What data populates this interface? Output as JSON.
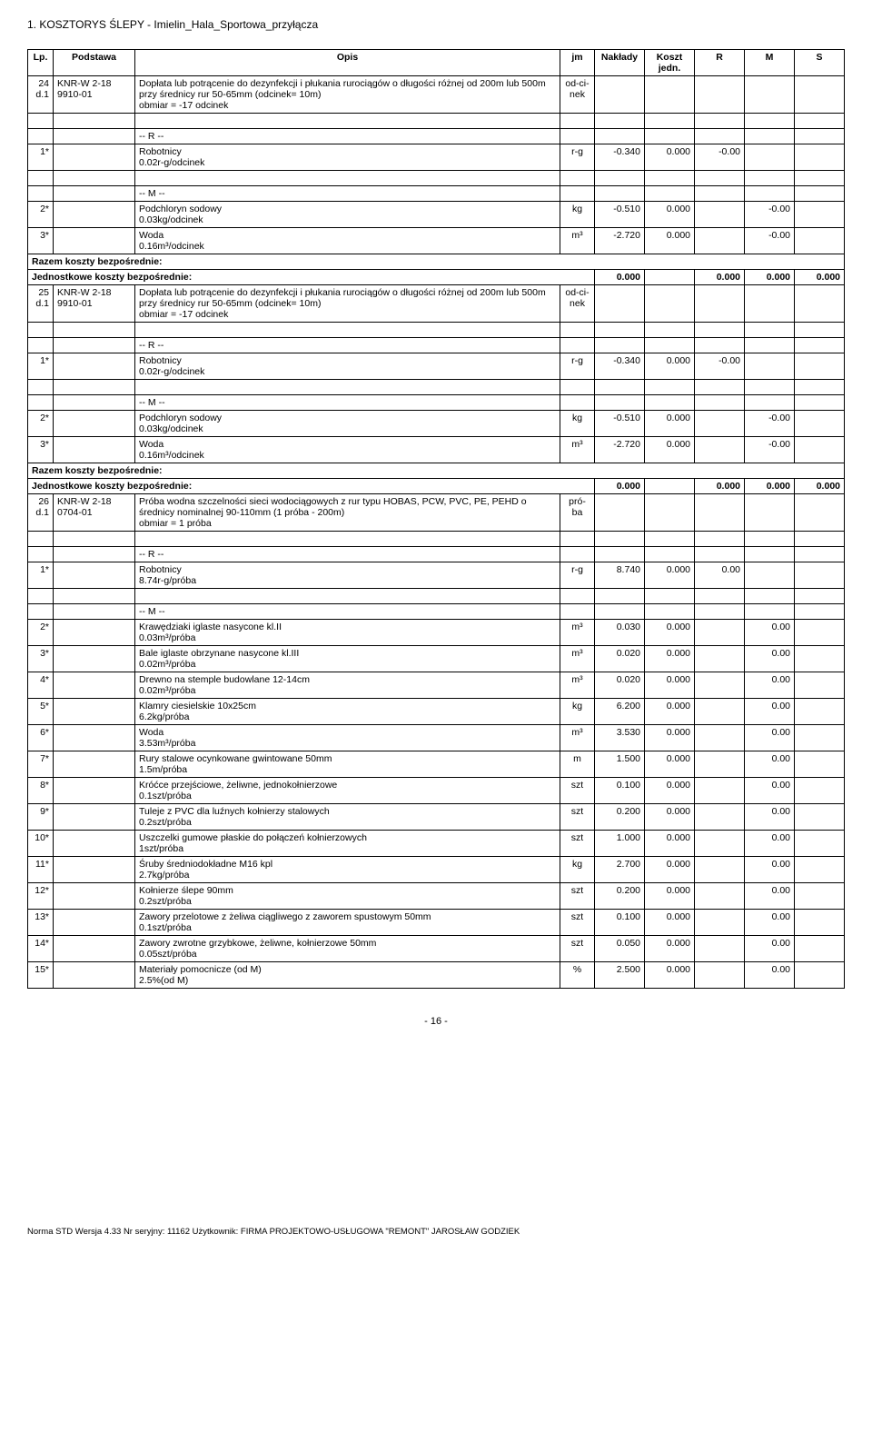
{
  "doc_title": "1. KOSZTORYS ŚLEPY  - Imielin_Hala_Sportowa_przyłącza",
  "headers": {
    "lp": "Lp.",
    "podstawa": "Podstawa",
    "opis": "Opis",
    "jm": "jm",
    "naklady": "Nakłady",
    "koszt": "Koszt jedn.",
    "r": "R",
    "m": "M",
    "s": "S"
  },
  "sections": [
    {
      "lp": "24",
      "pod_a": "KNR-W 2-18",
      "pod_b": "d.1 9910-01",
      "opis": "Dopłata lub potrącenie do dezynfekcji i płukania rurociągów o długości różnej od 200m lub 500m przy średnicy rur 50-65mm (odcinek= 10m)",
      "obmiar": "obmiar  = -17 odcinek",
      "jm": "od-ci-nek",
      "groups": [
        {
          "label": "-- R --",
          "rows": [
            {
              "n": "1*",
              "opis": "Robotnicy",
              "sub": "0.02r-g/odcinek",
              "jm": "r-g",
              "nak": "-0.340",
              "kj": "0.000",
              "r": "-0.00",
              "m": "",
              "s": ""
            }
          ]
        },
        {
          "label": "-- M --",
          "rows": [
            {
              "n": "2*",
              "opis": "Podchloryn sodowy",
              "sub": "0.03kg/odcinek",
              "jm": "kg",
              "nak": "-0.510",
              "kj": "0.000",
              "r": "",
              "m": "-0.00",
              "s": ""
            },
            {
              "n": "3*",
              "opis": "Woda",
              "sub": "0.16m³/odcinek",
              "jm": "m³",
              "nak": "-2.720",
              "kj": "0.000",
              "r": "",
              "m": "-0.00",
              "s": ""
            }
          ]
        }
      ],
      "sum": {
        "a": "Razem koszty bezpośrednie:",
        "b": "Jednostkowe koszty bezpośrednie:",
        "v0": "0.000",
        "r": "0.000",
        "m": "0.000",
        "s": "0.000"
      }
    },
    {
      "lp": "25",
      "pod_a": "KNR-W 2-18",
      "pod_b": "d.1 9910-01",
      "opis": "Dopłata lub potrącenie do dezynfekcji i płukania rurociągów o długości różnej od 200m lub 500m przy średnicy rur 50-65mm (odcinek= 10m)",
      "obmiar": "obmiar  = -17 odcinek",
      "jm": "od-ci-nek",
      "groups": [
        {
          "label": "-- R --",
          "rows": [
            {
              "n": "1*",
              "opis": "Robotnicy",
              "sub": "0.02r-g/odcinek",
              "jm": "r-g",
              "nak": "-0.340",
              "kj": "0.000",
              "r": "-0.00",
              "m": "",
              "s": ""
            }
          ]
        },
        {
          "label": "-- M --",
          "rows": [
            {
              "n": "2*",
              "opis": "Podchloryn sodowy",
              "sub": "0.03kg/odcinek",
              "jm": "kg",
              "nak": "-0.510",
              "kj": "0.000",
              "r": "",
              "m": "-0.00",
              "s": ""
            },
            {
              "n": "3*",
              "opis": "Woda",
              "sub": "0.16m³/odcinek",
              "jm": "m³",
              "nak": "-2.720",
              "kj": "0.000",
              "r": "",
              "m": "-0.00",
              "s": ""
            }
          ]
        }
      ],
      "sum": {
        "a": "Razem koszty bezpośrednie:",
        "b": "Jednostkowe koszty bezpośrednie:",
        "v0": "0.000",
        "r": "0.000",
        "m": "0.000",
        "s": "0.000"
      }
    },
    {
      "lp": "26",
      "pod_a": "KNR-W 2-18",
      "pod_b": "d.1 0704-01",
      "opis": "Próba wodna szczelności sieci wodociągowych z rur typu HOBAS, PCW, PVC, PE, PEHD o średnicy nominalnej 90-110mm (1 próba - 200m)",
      "obmiar": "obmiar  = 1 próba",
      "jm": "pró-ba",
      "groups": [
        {
          "label": "-- R --",
          "rows": [
            {
              "n": "1*",
              "opis": "Robotnicy",
              "sub": "8.74r-g/próba",
              "jm": "r-g",
              "nak": "8.740",
              "kj": "0.000",
              "r": "0.00",
              "m": "",
              "s": ""
            }
          ]
        },
        {
          "label": "-- M --",
          "rows": [
            {
              "n": "2*",
              "opis": "Krawędziaki iglaste nasycone kl.II",
              "sub": "0.03m³/próba",
              "jm": "m³",
              "nak": "0.030",
              "kj": "0.000",
              "r": "",
              "m": "0.00",
              "s": ""
            },
            {
              "n": "3*",
              "opis": "Bale iglaste obrzynane nasycone kl.III",
              "sub": "0.02m³/próba",
              "jm": "m³",
              "nak": "0.020",
              "kj": "0.000",
              "r": "",
              "m": "0.00",
              "s": ""
            },
            {
              "n": "4*",
              "opis": "Drewno na stemple budowlane 12-14cm",
              "sub": "0.02m³/próba",
              "jm": "m³",
              "nak": "0.020",
              "kj": "0.000",
              "r": "",
              "m": "0.00",
              "s": ""
            },
            {
              "n": "5*",
              "opis": "Klamry ciesielskie 10x25cm",
              "sub": "6.2kg/próba",
              "jm": "kg",
              "nak": "6.200",
              "kj": "0.000",
              "r": "",
              "m": "0.00",
              "s": ""
            },
            {
              "n": "6*",
              "opis": "Woda",
              "sub": "3.53m³/próba",
              "jm": "m³",
              "nak": "3.530",
              "kj": "0.000",
              "r": "",
              "m": "0.00",
              "s": ""
            },
            {
              "n": "7*",
              "opis": "Rury stalowe ocynkowane gwintowane  50mm",
              "sub": "1.5m/próba",
              "jm": "m",
              "nak": "1.500",
              "kj": "0.000",
              "r": "",
              "m": "0.00",
              "s": ""
            },
            {
              "n": "8*",
              "opis": "Króćce przejściowe, żeliwne, jednokołnierzowe",
              "sub": "0.1szt/próba",
              "jm": "szt",
              "nak": "0.100",
              "kj": "0.000",
              "r": "",
              "m": "0.00",
              "s": ""
            },
            {
              "n": "9*",
              "opis": "Tuleje z PVC dla luźnych kołnierzy stalowych",
              "sub": "0.2szt/próba",
              "jm": "szt",
              "nak": "0.200",
              "kj": "0.000",
              "r": "",
              "m": "0.00",
              "s": ""
            },
            {
              "n": "10*",
              "opis": "Uszczelki gumowe płaskie do połączeń kołnierzowych",
              "sub": "1szt/próba",
              "jm": "szt",
              "nak": "1.000",
              "kj": "0.000",
              "r": "",
              "m": "0.00",
              "s": ""
            },
            {
              "n": "11*",
              "opis": "Śruby średniodokładne M16 kpl",
              "sub": "2.7kg/próba",
              "jm": "kg",
              "nak": "2.700",
              "kj": "0.000",
              "r": "",
              "m": "0.00",
              "s": ""
            },
            {
              "n": "12*",
              "opis": "Kołnierze ślepe  90mm",
              "sub": "0.2szt/próba",
              "jm": "szt",
              "nak": "0.200",
              "kj": "0.000",
              "r": "",
              "m": "0.00",
              "s": ""
            },
            {
              "n": "13*",
              "opis": "Zawory przelotowe z żeliwa ciągliwego z zaworem spustowym 50mm",
              "sub": "0.1szt/próba",
              "jm": "szt",
              "nak": "0.100",
              "kj": "0.000",
              "r": "",
              "m": "0.00",
              "s": ""
            },
            {
              "n": "14*",
              "opis": "Zawory zwrotne grzybkowe, żeliwne, kołnierzowe  50mm",
              "sub": "0.05szt/próba",
              "jm": "szt",
              "nak": "0.050",
              "kj": "0.000",
              "r": "",
              "m": "0.00",
              "s": ""
            },
            {
              "n": "15*",
              "opis": "Materiały pomocnicze (od M)",
              "sub": "2.5%(od M)",
              "jm": "%",
              "nak": "2.500",
              "kj": "0.000",
              "r": "",
              "m": "0.00",
              "s": ""
            }
          ]
        }
      ]
    }
  ],
  "page": "- 16 -",
  "footer": "Norma STD Wersja 4.33 Nr seryjny: 11162 Użytkownik: FIRMA PROJEKTOWO-USŁUGOWA \"REMONT\" JAROSŁAW GODZIEK"
}
